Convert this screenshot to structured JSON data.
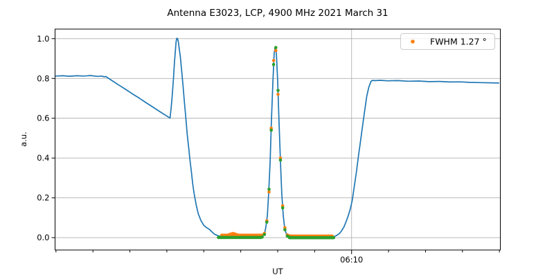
{
  "chart_data": {
    "type": "line",
    "title": "Antenna E3023, LCP, 4900 MHz 2021 March 31",
    "xlabel": "UT",
    "ylabel": "a.u.",
    "grid": true,
    "x_axis": {
      "unit": "minutes relative to 06:10 UT",
      "range": [
        -16.05,
        8.05
      ],
      "major_tick": {
        "x": 0,
        "label": "06:10"
      },
      "minor_ticks": [
        -16,
        -14,
        -12,
        -10,
        -8,
        -6,
        -4,
        -2,
        2,
        4,
        6,
        8
      ]
    },
    "y_axis": {
      "range": [
        -0.062,
        1.048
      ],
      "ticks": [
        0.0,
        0.2,
        0.4,
        0.6,
        0.8,
        1.0
      ],
      "tick_labels": [
        "0.0",
        "0.2",
        "0.4",
        "0.6",
        "0.8",
        "1.0"
      ]
    },
    "legend": {
      "position": "upper right",
      "entries": [
        {
          "label": "FWHM 1.27 °",
          "marker": "dot",
          "color": "#ff7f0e"
        }
      ]
    },
    "colors": {
      "line": "#1f77b4",
      "data_points": "#ff7f0e",
      "fit_points": "#2ca02c",
      "grid": "#b0b0b0",
      "spine": "#000000",
      "legend_edge": "#cccccc"
    },
    "series": [
      {
        "name": "antenna-scan-line",
        "type": "line",
        "color": "#1f77b4",
        "points": [
          [
            -16.0,
            0.812
          ],
          [
            -15.63,
            0.8135
          ],
          [
            -15.25,
            0.811
          ],
          [
            -14.88,
            0.8135
          ],
          [
            -14.5,
            0.812
          ],
          [
            -14.13,
            0.8145
          ],
          [
            -13.76,
            0.8105
          ],
          [
            -13.53,
            0.812
          ],
          [
            -13.38,
            0.808
          ],
          [
            -13.31,
            0.81
          ],
          [
            -13.01,
            0.792
          ],
          [
            -12.64,
            0.769
          ],
          [
            -12.26,
            0.747
          ],
          [
            -11.89,
            0.724
          ],
          [
            -11.51,
            0.702
          ],
          [
            -11.14,
            0.679
          ],
          [
            -10.77,
            0.657
          ],
          [
            -10.39,
            0.634
          ],
          [
            -10.02,
            0.612
          ],
          [
            -9.83,
            0.601
          ],
          [
            -9.78,
            0.64
          ],
          [
            -9.72,
            0.7
          ],
          [
            -9.64,
            0.8
          ],
          [
            -9.59,
            0.88
          ],
          [
            -9.53,
            0.95
          ],
          [
            -9.5,
            0.985
          ],
          [
            -9.46,
            1.002
          ],
          [
            -9.42,
            1.0
          ],
          [
            -9.38,
            0.985
          ],
          [
            -9.33,
            0.95
          ],
          [
            -9.27,
            0.91
          ],
          [
            -9.2,
            0.84
          ],
          [
            -9.12,
            0.76
          ],
          [
            -9.05,
            0.68
          ],
          [
            -8.97,
            0.6
          ],
          [
            -8.9,
            0.52
          ],
          [
            -8.82,
            0.455
          ],
          [
            -8.75,
            0.39
          ],
          [
            -8.67,
            0.33
          ],
          [
            -8.6,
            0.27
          ],
          [
            -8.52,
            0.22
          ],
          [
            -8.41,
            0.165
          ],
          [
            -8.3,
            0.12
          ],
          [
            -8.15,
            0.085
          ],
          [
            -8.0,
            0.062
          ],
          [
            -7.85,
            0.05
          ],
          [
            -7.7,
            0.042
          ],
          [
            -7.55,
            0.028
          ],
          [
            -7.4,
            0.016
          ],
          [
            -7.21,
            0.009
          ],
          [
            -7.03,
            0.006
          ],
          [
            -6.65,
            0.005
          ],
          [
            -6.28,
            0.004
          ],
          [
            -5.91,
            0.005
          ],
          [
            -5.53,
            0.004
          ],
          [
            -5.16,
            0.005
          ],
          [
            -4.86,
            0.007
          ],
          [
            -4.79,
            0.011
          ],
          [
            -4.71,
            0.023
          ],
          [
            -4.64,
            0.052
          ],
          [
            -4.56,
            0.112
          ],
          [
            -4.49,
            0.22
          ],
          [
            -4.41,
            0.382
          ],
          [
            -4.34,
            0.584
          ],
          [
            -4.26,
            0.785
          ],
          [
            -4.19,
            0.925
          ],
          [
            -4.13,
            0.96
          ],
          [
            -4.07,
            0.925
          ],
          [
            -4.0,
            0.785
          ],
          [
            -3.93,
            0.584
          ],
          [
            -3.85,
            0.382
          ],
          [
            -3.78,
            0.22
          ],
          [
            -3.7,
            0.112
          ],
          [
            -3.63,
            0.052
          ],
          [
            -3.55,
            0.023
          ],
          [
            -3.48,
            0.011
          ],
          [
            -3.36,
            0.006
          ],
          [
            -3.1,
            0.004
          ],
          [
            -2.73,
            0.005
          ],
          [
            -2.36,
            0.004
          ],
          [
            -1.98,
            0.005
          ],
          [
            -1.61,
            0.004
          ],
          [
            -1.23,
            0.005
          ],
          [
            -0.93,
            0.006
          ],
          [
            -0.79,
            0.012
          ],
          [
            -0.67,
            0.02
          ],
          [
            -0.56,
            0.032
          ],
          [
            -0.41,
            0.055
          ],
          [
            -0.3,
            0.08
          ],
          [
            -0.19,
            0.108
          ],
          [
            -0.07,
            0.145
          ],
          [
            0.04,
            0.19
          ],
          [
            0.15,
            0.26
          ],
          [
            0.26,
            0.33
          ],
          [
            0.37,
            0.41
          ],
          [
            0.49,
            0.49
          ],
          [
            0.6,
            0.565
          ],
          [
            0.71,
            0.64
          ],
          [
            0.82,
            0.71
          ],
          [
            0.93,
            0.755
          ],
          [
            1.05,
            0.785
          ],
          [
            1.12,
            0.79
          ],
          [
            1.27,
            0.789
          ],
          [
            1.57,
            0.7905
          ],
          [
            1.94,
            0.788
          ],
          [
            2.5,
            0.789
          ],
          [
            3.07,
            0.786
          ],
          [
            3.63,
            0.787
          ],
          [
            4.19,
            0.784
          ],
          [
            4.75,
            0.785
          ],
          [
            5.31,
            0.782
          ],
          [
            5.87,
            0.783
          ],
          [
            6.43,
            0.78
          ],
          [
            6.99,
            0.779
          ],
          [
            7.55,
            0.778
          ],
          [
            7.96,
            0.777
          ]
        ]
      },
      {
        "name": "measured-data-points",
        "type": "scatter",
        "color": "#ff7f0e",
        "marker_radius": 2.3,
        "points": [
          [
            -6.62,
            0.016
          ],
          [
            -6.5,
            0.019
          ],
          [
            -6.4,
            0.021
          ],
          [
            -6.3,
            0.018
          ],
          [
            -6.2,
            0.015
          ],
          [
            -4.84,
            0.012
          ],
          [
            -4.72,
            0.022
          ],
          [
            -4.59,
            0.085
          ],
          [
            -4.47,
            0.23
          ],
          [
            -4.35,
            0.55
          ],
          [
            -4.22,
            0.89
          ],
          [
            -4.1,
            0.94
          ],
          [
            -3.98,
            0.72
          ],
          [
            -3.85,
            0.4
          ],
          [
            -3.73,
            0.16
          ],
          [
            -3.61,
            0.05
          ],
          [
            -3.48,
            0.014
          ],
          [
            -3.36,
            0.009
          ]
        ],
        "baseline_bands": [
          {
            "x0": -7.03,
            "x1": -4.86,
            "y": 0.012,
            "n": 36
          },
          {
            "x0": -3.33,
            "x1": -1.05,
            "y": 0.008,
            "n": 37
          }
        ]
      },
      {
        "name": "gaussian-fit-points",
        "type": "scatter",
        "color": "#2ca02c",
        "marker_radius": 2.3,
        "points": [
          [
            -4.84,
            0.003
          ],
          [
            -4.72,
            0.016
          ],
          [
            -4.59,
            0.078
          ],
          [
            -4.47,
            0.243
          ],
          [
            -4.35,
            0.54
          ],
          [
            -4.22,
            0.87
          ],
          [
            -4.1,
            0.955
          ],
          [
            -3.98,
            0.74
          ],
          [
            -3.85,
            0.39
          ],
          [
            -3.73,
            0.15
          ],
          [
            -3.61,
            0.04
          ],
          [
            -3.48,
            0.008
          ],
          [
            -3.36,
            0.002
          ]
        ],
        "baseline_bands": [
          {
            "x0": -7.21,
            "x1": -4.9,
            "y": 0.001,
            "n": 38
          },
          {
            "x0": -3.36,
            "x1": -0.97,
            "y": 0.0,
            "n": 39
          }
        ]
      }
    ]
  }
}
